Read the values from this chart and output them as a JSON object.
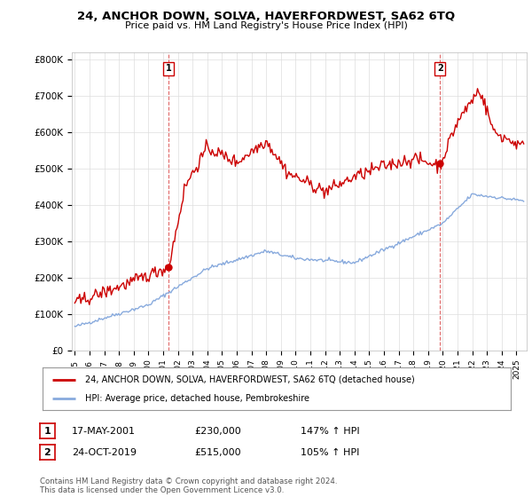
{
  "title": "24, ANCHOR DOWN, SOLVA, HAVERFORDWEST, SA62 6TQ",
  "subtitle": "Price paid vs. HM Land Registry's House Price Index (HPI)",
  "ylabel_ticks": [
    "£0",
    "£100K",
    "£200K",
    "£300K",
    "£400K",
    "£500K",
    "£600K",
    "£700K",
    "£800K"
  ],
  "ytick_values": [
    0,
    100000,
    200000,
    300000,
    400000,
    500000,
    600000,
    700000,
    800000
  ],
  "ylim": [
    0,
    820000
  ],
  "line1_color": "#cc0000",
  "line2_color": "#88aadd",
  "marker1_date": 2001.37,
  "marker1_value": 230000,
  "marker2_date": 2019.81,
  "marker2_value": 515000,
  "legend_line1": "24, ANCHOR DOWN, SOLVA, HAVERFORDWEST, SA62 6TQ (detached house)",
  "legend_line2": "HPI: Average price, detached house, Pembrokeshire",
  "annotation1_date": "17-MAY-2001",
  "annotation1_price": "£230,000",
  "annotation1_hpi": "147% ↑ HPI",
  "annotation2_date": "24-OCT-2019",
  "annotation2_price": "£515,000",
  "annotation2_hpi": "105% ↑ HPI",
  "footer": "Contains HM Land Registry data © Crown copyright and database right 2024.\nThis data is licensed under the Open Government Licence v3.0.",
  "background_color": "#ffffff",
  "grid_color": "#dddddd"
}
